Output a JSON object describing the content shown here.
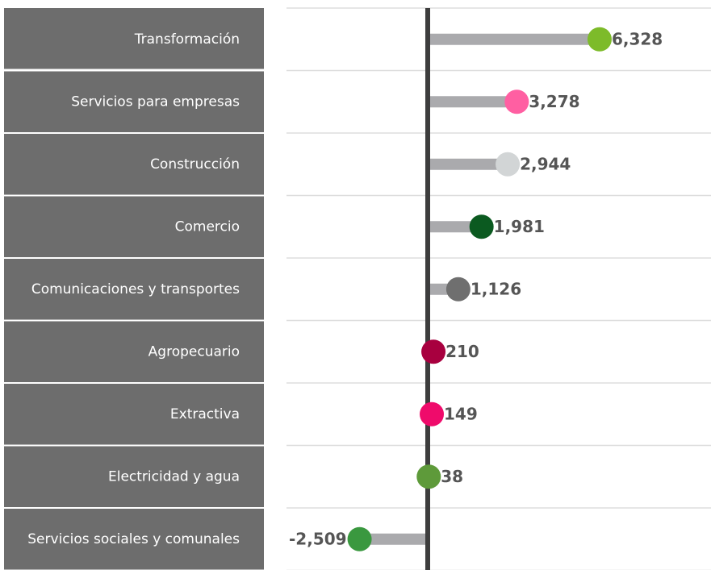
{
  "chart_data": {
    "type": "lollipop",
    "categories": [
      "Transformación",
      "Servicios para empresas",
      "Construcción",
      "Comercio",
      "Comunicaciones y transportes",
      "Agropecuario",
      "Extractiva",
      "Electricidad y agua",
      "Servicios sociales y comunales"
    ],
    "values": [
      6328,
      3278,
      2944,
      1981,
      1126,
      210,
      149,
      38,
      -2509
    ],
    "value_labels": [
      "6,328",
      "3,278",
      "2,944",
      "1,981",
      "1,126",
      "210",
      "149",
      "38",
      "-2,509"
    ],
    "colors": [
      "#7dbb2a",
      "#ff5fa2",
      "#d2d5d6",
      "#0b5a20",
      "#6f6f6f",
      "#a8003f",
      "#ef0b6b",
      "#5e9a3a",
      "#3a983f"
    ],
    "bar_color": "#aaaaad",
    "negative_label_color": "#ff0000",
    "xlim": [
      -5200,
      10430
    ],
    "grid": true
  }
}
